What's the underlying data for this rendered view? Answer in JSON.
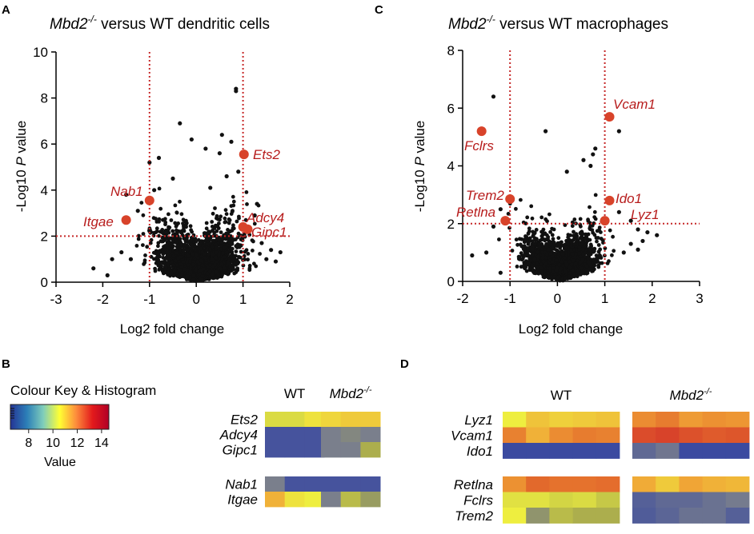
{
  "panels": {
    "A": {
      "letter": "A",
      "title_gene": "Mbd2",
      "title_sup": "-/-",
      "title_rest": " versus WT dendritic cells"
    },
    "C": {
      "letter": "C",
      "title_gene": "Mbd2",
      "title_sup": "-/-",
      "title_rest": " versus WT macrophages"
    },
    "B": {
      "letter": "B"
    },
    "D": {
      "letter": "D"
    }
  },
  "axis_text": {
    "ylabel_prefix": "-Log10 ",
    "ylabel_p": "P",
    "ylabel_suffix": " value",
    "xlabel": "Log2 fold change"
  },
  "colour_key": {
    "title": "Colour Key & Histogram",
    "ticks": [
      "8",
      "10",
      "12",
      "14"
    ],
    "tick_values": [
      8,
      10,
      12,
      14
    ],
    "range": [
      6.5,
      14.6
    ],
    "label": "Value",
    "gradient": [
      "#253494",
      "#2c7fb8",
      "#7fcdbb",
      "#ffff33",
      "#fd8d3c",
      "#e31a1c",
      "#b10026"
    ]
  },
  "colors": {
    "points": "#111111",
    "highlight": "#d8432a",
    "threshold": "#c62828",
    "label": "#b71c1c"
  },
  "chart_data": [
    {
      "id": "A",
      "type": "scatter",
      "title": "Mbd2-/- versus WT dendritic cells",
      "xlabel": "Log2 fold change",
      "ylabel": "-Log10 P value",
      "xlim": [
        -3,
        2
      ],
      "ylim": [
        0,
        10
      ],
      "xticks": [
        "-3",
        "-2",
        "-1",
        "0",
        "1",
        "2"
      ],
      "yticks": [
        "0",
        "2",
        "4",
        "6",
        "8",
        "10"
      ],
      "thresholds": {
        "x": [
          -1,
          1
        ],
        "y": 2
      },
      "outliers": [
        [
          0.85,
          8.4
        ],
        [
          0.85,
          8.3
        ],
        [
          -0.35,
          6.9
        ],
        [
          -0.1,
          6.2
        ],
        [
          0.55,
          6.4
        ],
        [
          0.75,
          6.1
        ],
        [
          0.2,
          5.8
        ],
        [
          0.5,
          5.6
        ],
        [
          -0.8,
          5.4
        ],
        [
          -1.0,
          5.2
        ],
        [
          0.9,
          4.8
        ],
        [
          0.65,
          4.6
        ],
        [
          -0.5,
          4.5
        ],
        [
          -1.5,
          3.8
        ],
        [
          0.3,
          4.1
        ],
        [
          1.3,
          3.4
        ],
        [
          1.25,
          2.9
        ],
        [
          -1.25,
          3.1
        ],
        [
          -0.9,
          4.0
        ],
        [
          -2.2,
          0.6
        ],
        [
          -1.6,
          1.3
        ],
        [
          -1.4,
          1.0
        ],
        [
          -1.8,
          1.0
        ],
        [
          1.5,
          1.0
        ],
        [
          1.6,
          1.4
        ],
        [
          1.8,
          1.3
        ],
        [
          1.7,
          0.9
        ],
        [
          1.4,
          1.7
        ],
        [
          -1.9,
          0.3
        ]
      ],
      "cloud": {
        "center": [
          0.05,
          1.1
        ],
        "spread": [
          0.75,
          1.2
        ],
        "count": 2400
      },
      "highlights": [
        {
          "gene": "Ets2",
          "x": 1.02,
          "y": 5.55
        },
        {
          "gene": "Nab1",
          "x": -1.0,
          "y": 3.55
        },
        {
          "gene": "Itgae",
          "x": -1.5,
          "y": 2.7
        },
        {
          "gene": "Adcy4",
          "x": 1.0,
          "y": 2.4
        },
        {
          "gene": "Gipc1",
          "x": 1.1,
          "y": 2.3
        }
      ]
    },
    {
      "id": "C",
      "type": "scatter",
      "title": "Mbd2-/- versus WT macrophages",
      "xlabel": "Log2 fold change",
      "ylabel": "-Log10 P value",
      "xlim": [
        -2,
        3
      ],
      "ylim": [
        0,
        8
      ],
      "xticks": [
        "-2",
        "-1",
        "0",
        "1",
        "2",
        "3"
      ],
      "yticks": [
        "0",
        "2",
        "4",
        "6",
        "8"
      ],
      "thresholds": {
        "x": [
          -1,
          1
        ],
        "y": 2
      },
      "outliers": [
        [
          -1.35,
          6.4
        ],
        [
          1.3,
          5.2
        ],
        [
          -0.25,
          5.2
        ],
        [
          0.8,
          4.6
        ],
        [
          0.75,
          4.4
        ],
        [
          0.55,
          4.2
        ],
        [
          0.7,
          4.0
        ],
        [
          0.2,
          3.8
        ],
        [
          -1.5,
          1.0
        ],
        [
          -1.8,
          0.9
        ],
        [
          -1.2,
          0.3
        ],
        [
          -1.35,
          1.9
        ],
        [
          1.55,
          2.1
        ],
        [
          1.7,
          1.8
        ],
        [
          1.9,
          1.7
        ],
        [
          2.1,
          1.6
        ],
        [
          1.55,
          1.3
        ],
        [
          1.7,
          1.1
        ],
        [
          1.4,
          1.0
        ],
        [
          1.8,
          1.4
        ],
        [
          1.3,
          2.4
        ],
        [
          -1.2,
          2.5
        ]
      ],
      "cloud": {
        "center": [
          0.05,
          0.8
        ],
        "spread": [
          0.65,
          0.85
        ],
        "count": 2200
      },
      "highlights": [
        {
          "gene": "Vcam1",
          "x": 1.1,
          "y": 5.7
        },
        {
          "gene": "Fclrs",
          "x": -1.6,
          "y": 5.2
        },
        {
          "gene": "Trem2",
          "x": -1.0,
          "y": 2.85
        },
        {
          "gene": "Ido1",
          "x": 1.1,
          "y": 2.8
        },
        {
          "gene": "Retlna",
          "x": -1.1,
          "y": 2.1
        },
        {
          "gene": "Lyz1",
          "x": 1.0,
          "y": 2.1
        }
      ]
    },
    {
      "id": "B",
      "type": "heatmap",
      "group_labels": [
        {
          "gene": "WT",
          "sup": ""
        },
        {
          "gene": "Mbd2",
          "sup": "-/-"
        }
      ],
      "columns_per_group": 3,
      "blocks": [
        {
          "genes": [
            "Ets2",
            "Adcy4",
            "Gipc1"
          ],
          "values": [
            [
              10.3,
              10.3,
              10.8,
              11.0,
              11.2,
              11.2
            ],
            [
              7.5,
              7.5,
              7.5,
              8.5,
              8.7,
              8.5
            ],
            [
              7.5,
              7.5,
              7.5,
              8.5,
              8.5,
              9.6
            ]
          ]
        },
        {
          "genes": [
            "Nab1",
            "Itgae"
          ],
          "values": [
            [
              8.5,
              7.5,
              7.5,
              7.5,
              7.5,
              7.5
            ],
            [
              11.6,
              10.8,
              10.6,
              8.5,
              9.8,
              9.2
            ]
          ]
        }
      ]
    },
    {
      "id": "D",
      "type": "heatmap",
      "group_labels": [
        {
          "gene": "WT",
          "sup": ""
        },
        {
          "gene": "Mbd2",
          "sup": "-/-"
        }
      ],
      "columns_per_group": 5,
      "blocks": [
        {
          "genes": [
            "Lyz1",
            "Vcam1",
            "Ido1"
          ],
          "values": [
            [
              10.6,
              11.3,
              11.1,
              11.2,
              11.3,
              12.3,
              12.6,
              12.0,
              12.2,
              12.1
            ],
            [
              12.5,
              11.6,
              12.3,
              12.6,
              12.5,
              13.6,
              13.8,
              13.5,
              13.3,
              13.4
            ],
            [
              7.3,
              7.3,
              7.3,
              7.3,
              7.3,
              8.0,
              8.3,
              7.3,
              7.3,
              7.3
            ]
          ]
        },
        {
          "genes": [
            "Retlna",
            "Fclrs",
            "Trem2"
          ],
          "values": [
            [
              12.2,
              13.0,
              12.8,
              12.8,
              12.9,
              11.7,
              11.2,
              11.8,
              11.6,
              11.5
            ],
            [
              10.4,
              10.4,
              10.2,
              10.3,
              10.0,
              7.8,
              8.0,
              8.0,
              8.2,
              8.4
            ],
            [
              10.6,
              9.0,
              9.8,
              9.6,
              9.6,
              7.7,
              7.9,
              8.2,
              8.2,
              7.8
            ]
          ]
        }
      ]
    }
  ]
}
